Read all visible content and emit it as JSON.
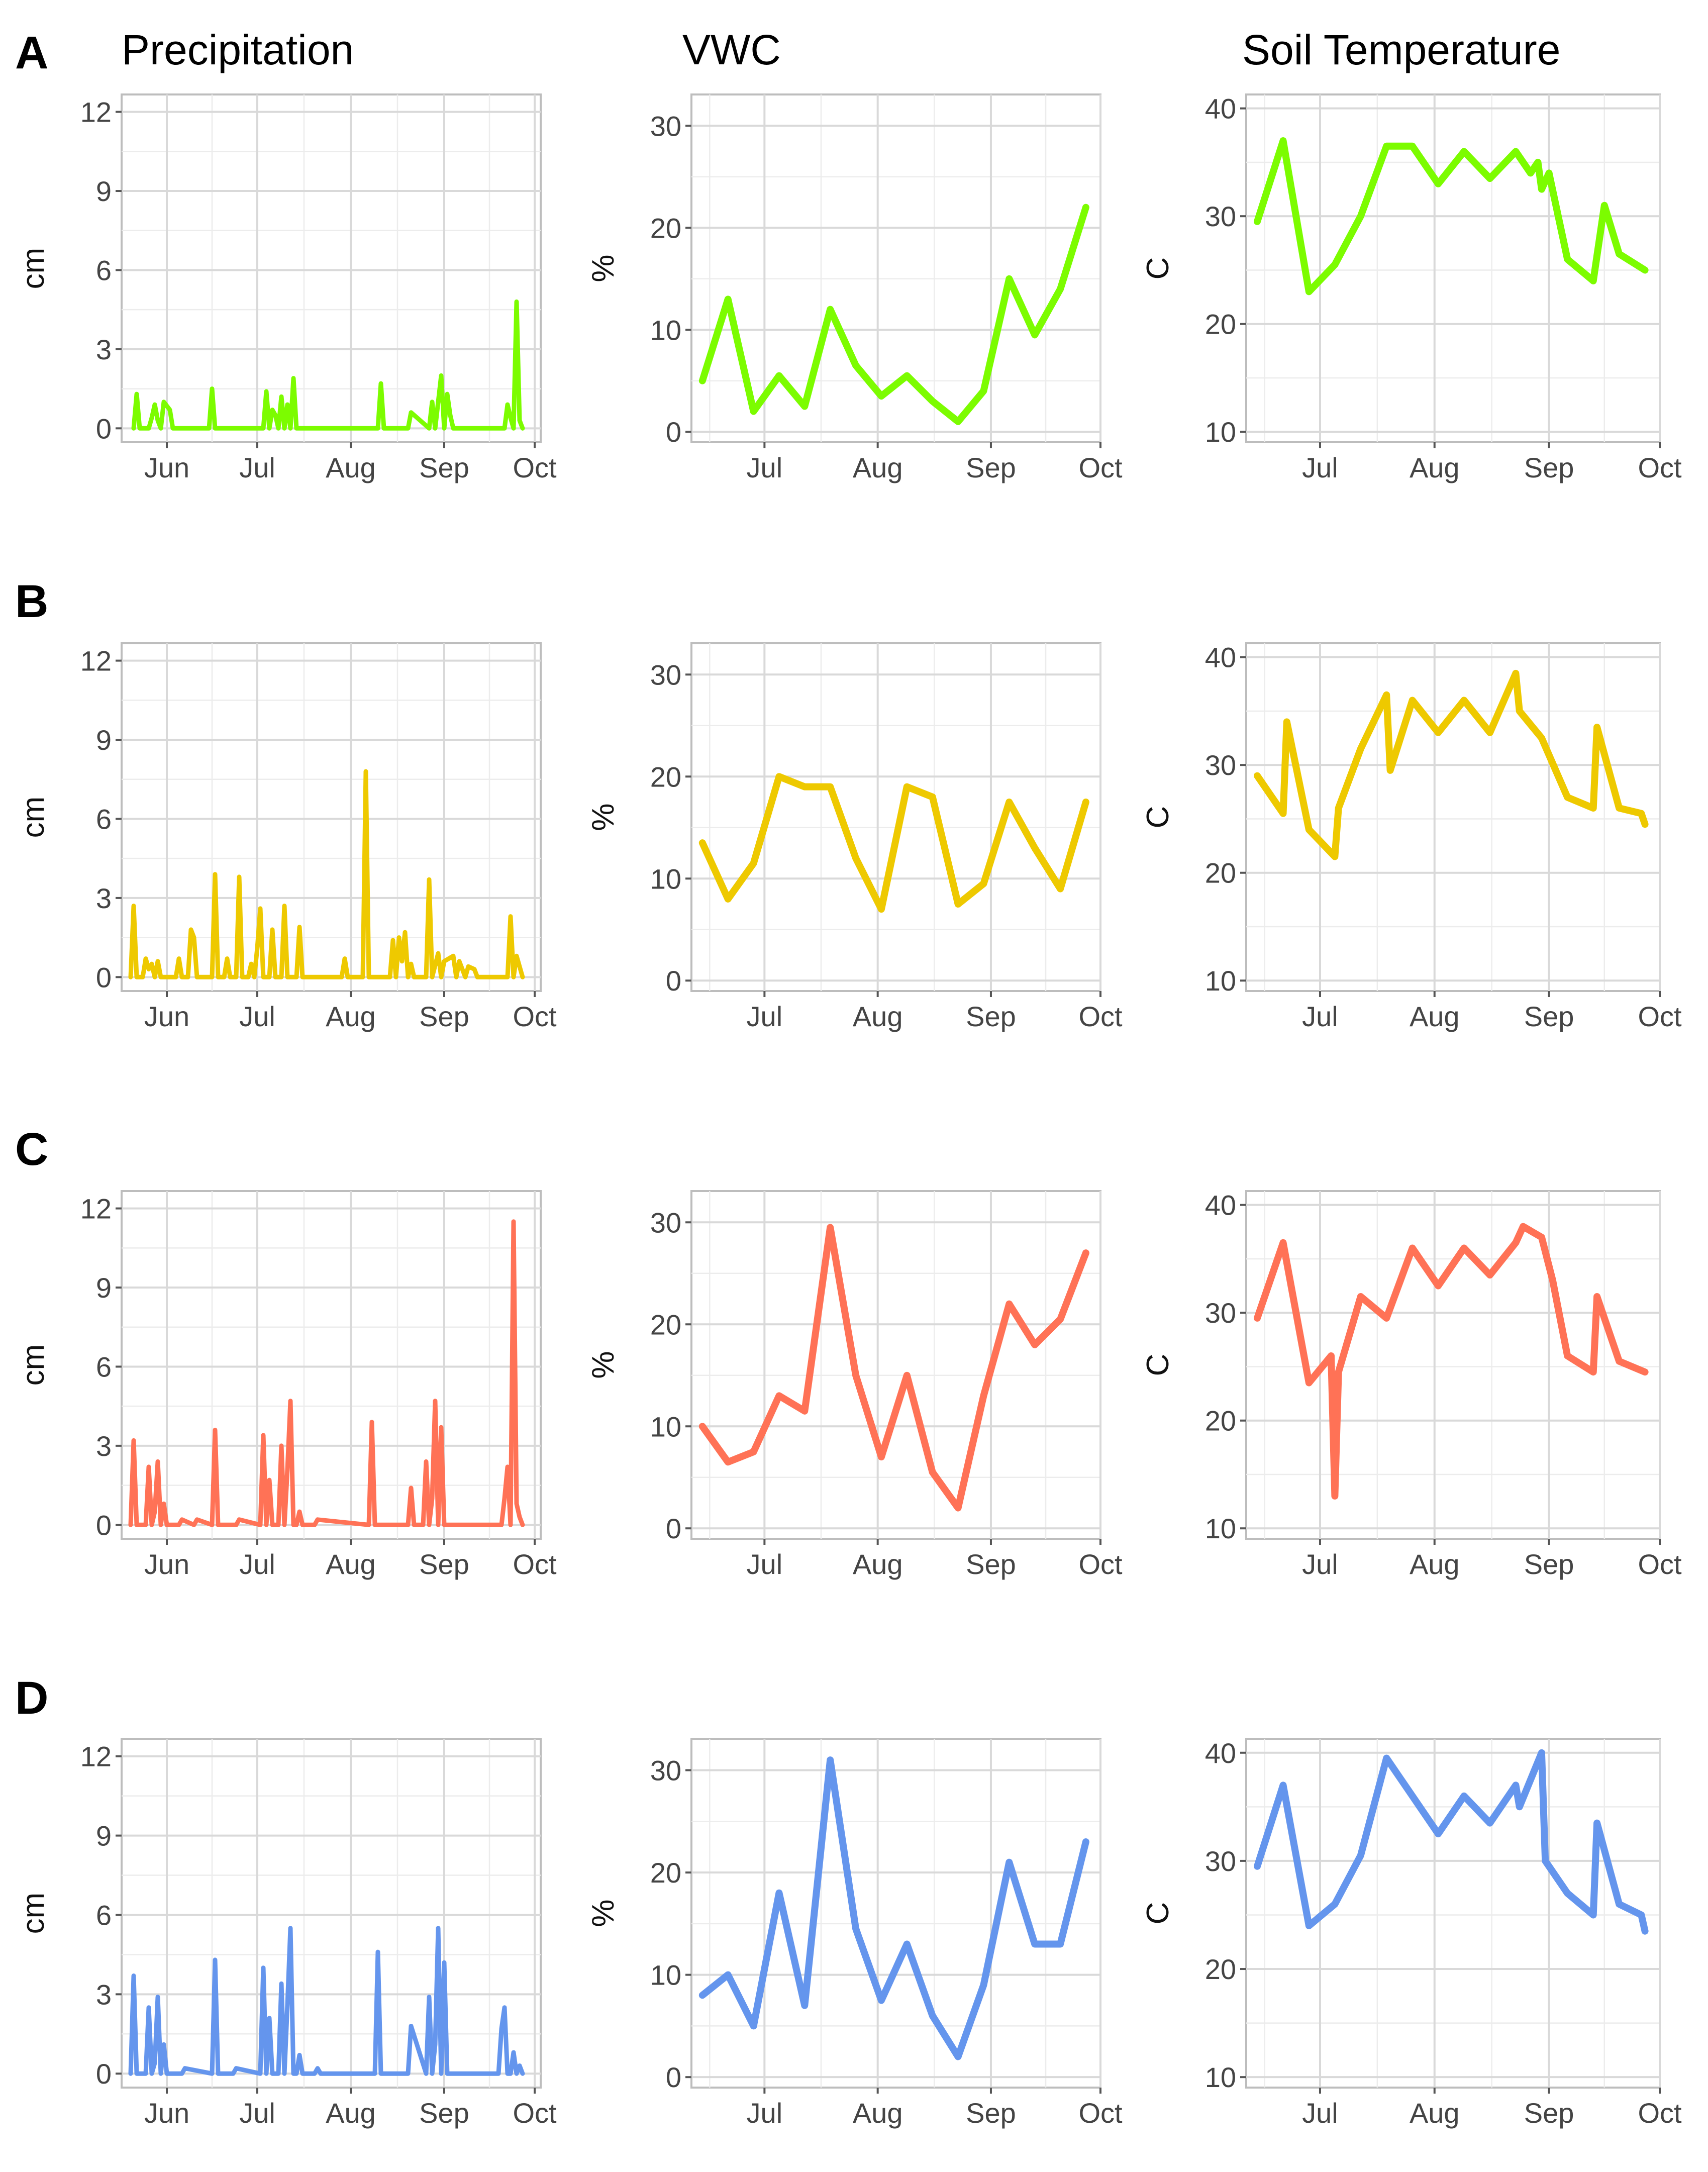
{
  "column_titles": [
    "Precipitation",
    "VWC",
    "Soil Temperature"
  ],
  "row_labels": [
    "A",
    "B",
    "C",
    "D"
  ],
  "colors": {
    "A": "#7cfc00",
    "B": "#eec900",
    "C": "#ff7256",
    "D": "#6495ed"
  },
  "chart_data": [
    {
      "row": "A",
      "variable": "Precipitation",
      "type": "line",
      "ylabel": "cm",
      "ylim": [
        0,
        12
      ],
      "yticks": [
        0,
        3,
        6,
        9,
        12
      ],
      "xticks": [
        "Jun",
        "Jul",
        "Aug",
        "Sep",
        "Oct"
      ],
      "grid": true,
      "x": [
        "05-21",
        "05-22",
        "05-23",
        "05-26",
        "05-27",
        "05-28",
        "05-29",
        "05-30",
        "05-31",
        "06-02",
        "06-03",
        "06-04",
        "06-05",
        "06-15",
        "06-16",
        "06-17",
        "07-03",
        "07-04",
        "07-05",
        "07-06",
        "07-07",
        "07-08",
        "07-09",
        "07-10",
        "07-11",
        "07-12",
        "07-13",
        "07-14",
        "07-15",
        "07-16",
        "07-17",
        "08-10",
        "08-11",
        "08-12",
        "08-20",
        "08-21",
        "08-27",
        "08-28",
        "08-29",
        "08-31",
        "09-01",
        "09-02",
        "09-03",
        "09-04",
        "09-05",
        "09-21",
        "09-22",
        "09-23",
        "09-24",
        "09-25",
        "09-26",
        "09-27"
      ],
      "y": [
        0,
        1.3,
        0,
        0,
        0.4,
        0.9,
        0.3,
        0,
        1.0,
        0.7,
        0,
        0,
        0,
        0,
        1.5,
        0,
        0,
        1.4,
        0,
        0.7,
        0.5,
        0,
        1.2,
        0,
        0.9,
        0,
        1.9,
        0,
        0,
        0,
        0,
        0,
        1.7,
        0,
        0,
        0.6,
        0,
        1.0,
        0,
        2.0,
        0,
        1.3,
        0.5,
        0,
        0,
        0,
        0.9,
        0.4,
        0,
        4.8,
        0.3,
        0
      ]
    },
    {
      "row": "A",
      "variable": "VWC",
      "type": "line",
      "ylabel": "%",
      "ylim": [
        0,
        30
      ],
      "yticks": [
        0,
        10,
        20,
        30
      ],
      "xticks": [
        "Jul",
        "Aug",
        "Sep",
        "Oct"
      ],
      "grid": true,
      "x": [
        "06-14",
        "06-21",
        "06-28",
        "07-05",
        "07-12",
        "07-19",
        "07-26",
        "08-02",
        "08-09",
        "08-16",
        "08-23",
        "08-30",
        "09-06",
        "09-13",
        "09-20",
        "09-27"
      ],
      "y": [
        5,
        13,
        2,
        5.5,
        2.5,
        12,
        6.5,
        3.5,
        5.5,
        3,
        1,
        4,
        15,
        9.5,
        14,
        22
      ]
    },
    {
      "row": "A",
      "variable": "Soil Temperature",
      "type": "line",
      "ylabel": "C",
      "ylim": [
        10,
        40
      ],
      "yticks": [
        10,
        20,
        30,
        40
      ],
      "xticks": [
        "Jul",
        "Aug",
        "Sep",
        "Oct"
      ],
      "grid": true,
      "x": [
        "06-14",
        "06-21",
        "06-28",
        "07-05",
        "07-12",
        "07-19",
        "07-26",
        "08-02",
        "08-09",
        "08-16",
        "08-23",
        "08-27",
        "08-29",
        "08-30",
        "09-01",
        "09-06",
        "09-13",
        "09-16",
        "09-20",
        "09-27"
      ],
      "y": [
        29.5,
        37,
        23,
        25.5,
        30,
        36.5,
        36.5,
        33,
        36,
        33.5,
        36,
        34,
        35,
        32.5,
        34,
        26,
        24,
        31,
        26.5,
        25
      ]
    },
    {
      "row": "B",
      "variable": "Precipitation",
      "type": "line",
      "ylabel": "cm",
      "ylim": [
        0,
        12
      ],
      "yticks": [
        0,
        3,
        6,
        9,
        12
      ],
      "xticks": [
        "Jun",
        "Jul",
        "Aug",
        "Sep",
        "Oct"
      ],
      "grid": true,
      "x": [
        "05-20",
        "05-21",
        "05-22",
        "05-24",
        "05-25",
        "05-26",
        "05-27",
        "05-28",
        "05-29",
        "05-30",
        "06-04",
        "06-05",
        "06-06",
        "06-08",
        "06-09",
        "06-10",
        "06-11",
        "06-16",
        "06-17",
        "06-18",
        "06-20",
        "06-21",
        "06-22",
        "06-24",
        "06-25",
        "06-26",
        "06-28",
        "06-29",
        "06-30",
        "07-01",
        "07-02",
        "07-03",
        "07-05",
        "07-06",
        "07-07",
        "07-09",
        "07-10",
        "07-11",
        "07-14",
        "07-15",
        "07-16",
        "07-17",
        "07-18",
        "07-19",
        "07-20",
        "07-29",
        "07-30",
        "07-31",
        "08-05",
        "08-06",
        "08-07",
        "08-13",
        "08-14",
        "08-15",
        "08-16",
        "08-17",
        "08-18",
        "08-19",
        "08-20",
        "08-21",
        "08-22",
        "08-26",
        "08-27",
        "08-28",
        "08-30",
        "08-31",
        "09-01",
        "09-04",
        "09-05",
        "09-06",
        "09-08",
        "09-09",
        "09-11",
        "09-12",
        "09-22",
        "09-23",
        "09-24",
        "09-25",
        "09-26",
        "09-27"
      ],
      "y": [
        0,
        2.7,
        0,
        0,
        0.7,
        0.3,
        0.5,
        0,
        0.6,
        0,
        0,
        0.7,
        0,
        0,
        1.8,
        1.5,
        0,
        0,
        3.9,
        0,
        0,
        0.7,
        0,
        0,
        3.8,
        0,
        0,
        0.5,
        0,
        1.1,
        2.6,
        0,
        0,
        1.8,
        0,
        0,
        2.7,
        0,
        0,
        1.9,
        0,
        0,
        0,
        0,
        0,
        0,
        0.7,
        0,
        0,
        7.8,
        0,
        0,
        0,
        1.4,
        0,
        1.5,
        0.6,
        1.7,
        0,
        0.5,
        0,
        0,
        3.7,
        0,
        0.9,
        0,
        0.6,
        0.8,
        0,
        0.6,
        0,
        0.4,
        0.3,
        0,
        0,
        2.3,
        0,
        0.8,
        0.4,
        0
      ]
    },
    {
      "row": "B",
      "variable": "VWC",
      "type": "line",
      "ylabel": "%",
      "ylim": [
        0,
        30
      ],
      "yticks": [
        0,
        10,
        20,
        30
      ],
      "xticks": [
        "Jul",
        "Aug",
        "Sep",
        "Oct"
      ],
      "grid": true,
      "x": [
        "06-14",
        "06-21",
        "06-28",
        "07-05",
        "07-12",
        "07-19",
        "07-26",
        "08-02",
        "08-09",
        "08-16",
        "08-23",
        "08-30",
        "09-06",
        "09-13",
        "09-20",
        "09-27"
      ],
      "y": [
        13.5,
        8,
        11.5,
        20,
        19,
        19,
        12,
        7,
        19,
        18,
        7.5,
        9.5,
        17.5,
        13,
        9,
        17.5
      ]
    },
    {
      "row": "B",
      "variable": "Soil Temperature",
      "type": "line",
      "ylabel": "C",
      "ylim": [
        10,
        40
      ],
      "yticks": [
        10,
        20,
        30,
        40
      ],
      "xticks": [
        "Jul",
        "Aug",
        "Sep",
        "Oct"
      ],
      "grid": true,
      "x": [
        "06-14",
        "06-21",
        "06-22",
        "06-28",
        "07-05",
        "07-06",
        "07-12",
        "07-19",
        "07-20",
        "07-26",
        "08-02",
        "08-09",
        "08-16",
        "08-23",
        "08-24",
        "08-30",
        "09-06",
        "09-13",
        "09-14",
        "09-20",
        "09-26",
        "09-27"
      ],
      "y": [
        29,
        25.5,
        34,
        24,
        21.5,
        26,
        31.5,
        36.5,
        29.5,
        36,
        33,
        36,
        33,
        38.5,
        35,
        32.5,
        27,
        26,
        33.5,
        26,
        25.5,
        24.5
      ]
    },
    {
      "row": "C",
      "variable": "Precipitation",
      "type": "line",
      "ylabel": "cm",
      "ylim": [
        0,
        12
      ],
      "yticks": [
        0,
        3,
        6,
        9,
        12
      ],
      "xticks": [
        "Jun",
        "Jul",
        "Aug",
        "Sep",
        "Oct"
      ],
      "grid": true,
      "x": [
        "05-20",
        "05-21",
        "05-22",
        "05-25",
        "05-26",
        "05-27",
        "05-28",
        "05-29",
        "05-30",
        "05-31",
        "06-01",
        "06-02",
        "06-05",
        "06-06",
        "06-10",
        "06-11",
        "06-16",
        "06-17",
        "06-18",
        "06-24",
        "06-25",
        "07-02",
        "07-03",
        "07-04",
        "07-05",
        "07-06",
        "07-08",
        "07-09",
        "07-10",
        "07-11",
        "07-12",
        "07-13",
        "07-14",
        "07-15",
        "07-16",
        "07-20",
        "07-21",
        "08-07",
        "08-08",
        "08-09",
        "08-20",
        "08-21",
        "08-22",
        "08-25",
        "08-26",
        "08-27",
        "08-28",
        "08-29",
        "08-30",
        "08-31",
        "09-01",
        "09-02",
        "09-03",
        "09-20",
        "09-21",
        "09-22",
        "09-23",
        "09-24",
        "09-25",
        "09-26",
        "09-27"
      ],
      "y": [
        0,
        3.2,
        0,
        0,
        2.2,
        0,
        0.5,
        2.4,
        0,
        0.8,
        0,
        0,
        0,
        0.2,
        0,
        0.2,
        0,
        3.6,
        0,
        0,
        0.2,
        0,
        3.4,
        0,
        1.7,
        0,
        0,
        3.0,
        0,
        2.1,
        4.7,
        0,
        0,
        0.5,
        0,
        0,
        0.2,
        0,
        3.9,
        0,
        0,
        1.4,
        0,
        0,
        2.4,
        0,
        1.0,
        4.7,
        0,
        3.7,
        0,
        0,
        0,
        0,
        1.0,
        2.2,
        0,
        11.5,
        0.8,
        0.3,
        0
      ]
    },
    {
      "row": "C",
      "variable": "VWC",
      "type": "line",
      "ylabel": "%",
      "ylim": [
        0,
        30
      ],
      "yticks": [
        0,
        10,
        20,
        30
      ],
      "xticks": [
        "Jul",
        "Aug",
        "Sep",
        "Oct"
      ],
      "grid": true,
      "x": [
        "06-14",
        "06-21",
        "06-28",
        "07-05",
        "07-12",
        "07-19",
        "07-26",
        "08-02",
        "08-09",
        "08-16",
        "08-23",
        "08-30",
        "09-06",
        "09-13",
        "09-20",
        "09-27"
      ],
      "y": [
        10,
        6.5,
        7.5,
        13,
        11.5,
        29.5,
        15,
        7,
        15,
        5.5,
        2,
        13,
        22,
        18,
        20.5,
        27
      ]
    },
    {
      "row": "C",
      "variable": "Soil Temperature",
      "type": "line",
      "ylabel": "C",
      "ylim": [
        10,
        40
      ],
      "yticks": [
        10,
        20,
        30,
        40
      ],
      "xticks": [
        "Jul",
        "Aug",
        "Sep",
        "Oct"
      ],
      "grid": true,
      "x": [
        "06-14",
        "06-21",
        "06-28",
        "07-04",
        "07-05",
        "07-06",
        "07-12",
        "07-19",
        "07-26",
        "08-02",
        "08-09",
        "08-16",
        "08-23",
        "08-25",
        "08-30",
        "09-02",
        "09-06",
        "09-13",
        "09-14",
        "09-20",
        "09-27"
      ],
      "y": [
        29.5,
        36.5,
        23.5,
        26,
        13,
        24.5,
        31.5,
        29.5,
        36,
        32.5,
        36,
        33.5,
        36.5,
        38,
        37,
        33,
        26,
        24.5,
        31.5,
        25.5,
        24.5
      ]
    },
    {
      "row": "D",
      "variable": "Precipitation",
      "type": "line",
      "ylabel": "cm",
      "ylim": [
        0,
        12
      ],
      "yticks": [
        0,
        3,
        6,
        9,
        12
      ],
      "xticks": [
        "Jun",
        "Jul",
        "Aug",
        "Sep",
        "Oct"
      ],
      "grid": true,
      "x": [
        "05-20",
        "05-21",
        "05-22",
        "05-25",
        "05-26",
        "05-27",
        "05-28",
        "05-29",
        "05-30",
        "05-31",
        "06-01",
        "06-02",
        "06-06",
        "06-07",
        "06-16",
        "06-17",
        "06-18",
        "06-23",
        "06-24",
        "07-02",
        "07-03",
        "07-04",
        "07-05",
        "07-06",
        "07-08",
        "07-09",
        "07-10",
        "07-11",
        "07-12",
        "07-13",
        "07-14",
        "07-15",
        "07-16",
        "07-20",
        "07-21",
        "07-22",
        "08-09",
        "08-10",
        "08-11",
        "08-20",
        "08-21",
        "08-26",
        "08-27",
        "08-28",
        "08-29",
        "08-30",
        "08-31",
        "09-01",
        "09-02",
        "09-03",
        "09-19",
        "09-20",
        "09-21",
        "09-22",
        "09-23",
        "09-24",
        "09-25",
        "09-26",
        "09-27"
      ],
      "y": [
        0,
        3.7,
        0,
        0,
        2.5,
        0,
        0.4,
        2.9,
        0,
        1.1,
        0,
        0,
        0,
        0.2,
        0,
        4.3,
        0,
        0,
        0.2,
        0,
        4.0,
        0,
        2.1,
        0,
        0,
        3.4,
        0,
        2.6,
        5.5,
        0,
        0,
        0.7,
        0,
        0,
        0.2,
        0,
        0,
        4.6,
        0,
        0,
        1.8,
        0,
        2.9,
        0,
        1.1,
        5.5,
        0,
        4.2,
        0,
        0,
        0,
        1.7,
        2.5,
        0,
        0,
        0.8,
        0,
        0.3,
        0
      ]
    },
    {
      "row": "D",
      "variable": "VWC",
      "type": "line",
      "ylabel": "%",
      "ylim": [
        0,
        30
      ],
      "yticks": [
        0,
        10,
        20,
        30
      ],
      "xticks": [
        "Jul",
        "Aug",
        "Sep",
        "Oct"
      ],
      "grid": true,
      "x": [
        "06-14",
        "06-21",
        "06-28",
        "07-05",
        "07-12",
        "07-19",
        "07-26",
        "08-02",
        "08-09",
        "08-16",
        "08-23",
        "08-30",
        "09-06",
        "09-13",
        "09-20",
        "09-27"
      ],
      "y": [
        8,
        10,
        5,
        18,
        7,
        31,
        14.5,
        7.5,
        13,
        6,
        2,
        9,
        21,
        13,
        13,
        23
      ]
    },
    {
      "row": "D",
      "variable": "Soil Temperature",
      "type": "line",
      "ylabel": "C",
      "ylim": [
        10,
        40
      ],
      "yticks": [
        10,
        20,
        30,
        40
      ],
      "xticks": [
        "Jul",
        "Aug",
        "Sep",
        "Oct"
      ],
      "grid": true,
      "x": [
        "06-14",
        "06-21",
        "06-28",
        "07-05",
        "07-12",
        "07-19",
        "07-26",
        "08-02",
        "08-09",
        "08-16",
        "08-23",
        "08-24",
        "08-30",
        "08-31",
        "09-06",
        "09-13",
        "09-14",
        "09-20",
        "09-26",
        "09-27"
      ],
      "y": [
        29.5,
        37,
        24,
        26,
        30.5,
        39.5,
        36,
        32.5,
        36,
        33.5,
        37,
        35,
        40,
        30,
        27,
        25,
        33.5,
        26,
        25,
        23.5
      ]
    }
  ]
}
